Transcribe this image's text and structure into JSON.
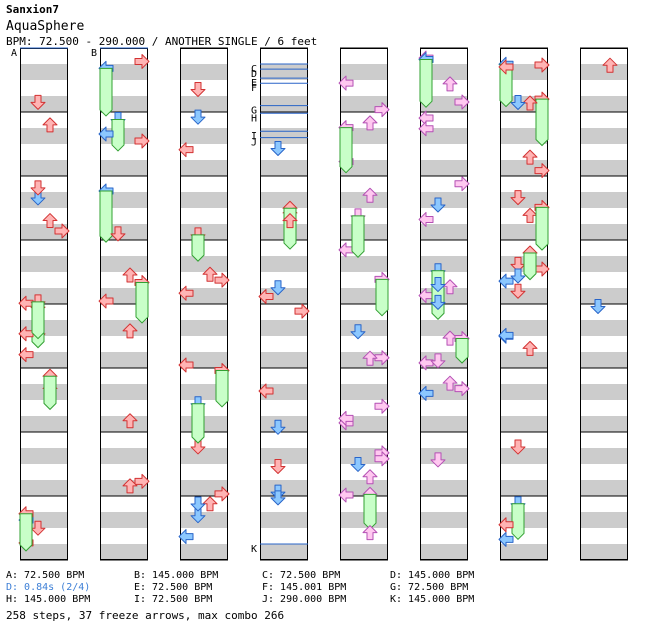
{
  "song": {
    "artist": "Sanxion7",
    "title": "AquaSphere",
    "info": "BPM: 72.500 - 290.000 / ANOTHER SINGLE / 6 feet"
  },
  "chart_data": {
    "type": "table",
    "markers": [
      {
        "label": "A",
        "column": 0,
        "measure": 0.0
      },
      {
        "label": "B",
        "column": 1,
        "measure": 0.0
      },
      {
        "label": "C",
        "column": 3,
        "measure": 0.25
      },
      {
        "label": "D",
        "column": 3,
        "measure": 0.33
      },
      {
        "label": "E",
        "column": 3,
        "measure": 0.47
      },
      {
        "label": "F",
        "column": 3,
        "measure": 0.55
      },
      {
        "label": "G",
        "column": 3,
        "measure": 0.9
      },
      {
        "label": "H",
        "column": 3,
        "measure": 1.02
      },
      {
        "label": "I",
        "column": 3,
        "measure": 1.3
      },
      {
        "label": "J",
        "column": 3,
        "measure": 1.4
      },
      {
        "label": "K",
        "column": 3,
        "measure": 7.75
      }
    ]
  },
  "legend": [
    {
      "text": "A: 72.500 BPM",
      "highlight": false
    },
    {
      "text": "B: 145.000 BPM",
      "highlight": false
    },
    {
      "text": "C: 72.500 BPM",
      "highlight": false
    },
    {
      "text": "D: 145.000 BPM",
      "highlight": false
    },
    {
      "text": "D: 0.84s (2/4)",
      "highlight": true
    },
    {
      "text": "E: 72.500 BPM",
      "highlight": false
    },
    {
      "text": "F: 145.001 BPM",
      "highlight": false
    },
    {
      "text": "G: 72.500 BPM",
      "highlight": false
    },
    {
      "text": "H: 145.000 BPM",
      "highlight": false
    },
    {
      "text": "I: 72.500 BPM",
      "highlight": false
    },
    {
      "text": "J: 290.000 BPM",
      "highlight": false
    },
    {
      "text": "K: 145.000 BPM",
      "highlight": false
    }
  ],
  "footer": "258 steps, 37 freeze arrows, max combo 266",
  "colors": {
    "band": "#cccccc",
    "red_fill": "#ffb4b4",
    "red_stroke": "#d23232",
    "blue_fill": "#8cc8ff",
    "blue_stroke": "#2864c8",
    "pink_fill": "#ffc8f0",
    "pink_stroke": "#b450b4",
    "freeze_fill": "#c8ffc8",
    "freeze_stroke": "#32a032",
    "bpm_line": "#2864c8"
  }
}
